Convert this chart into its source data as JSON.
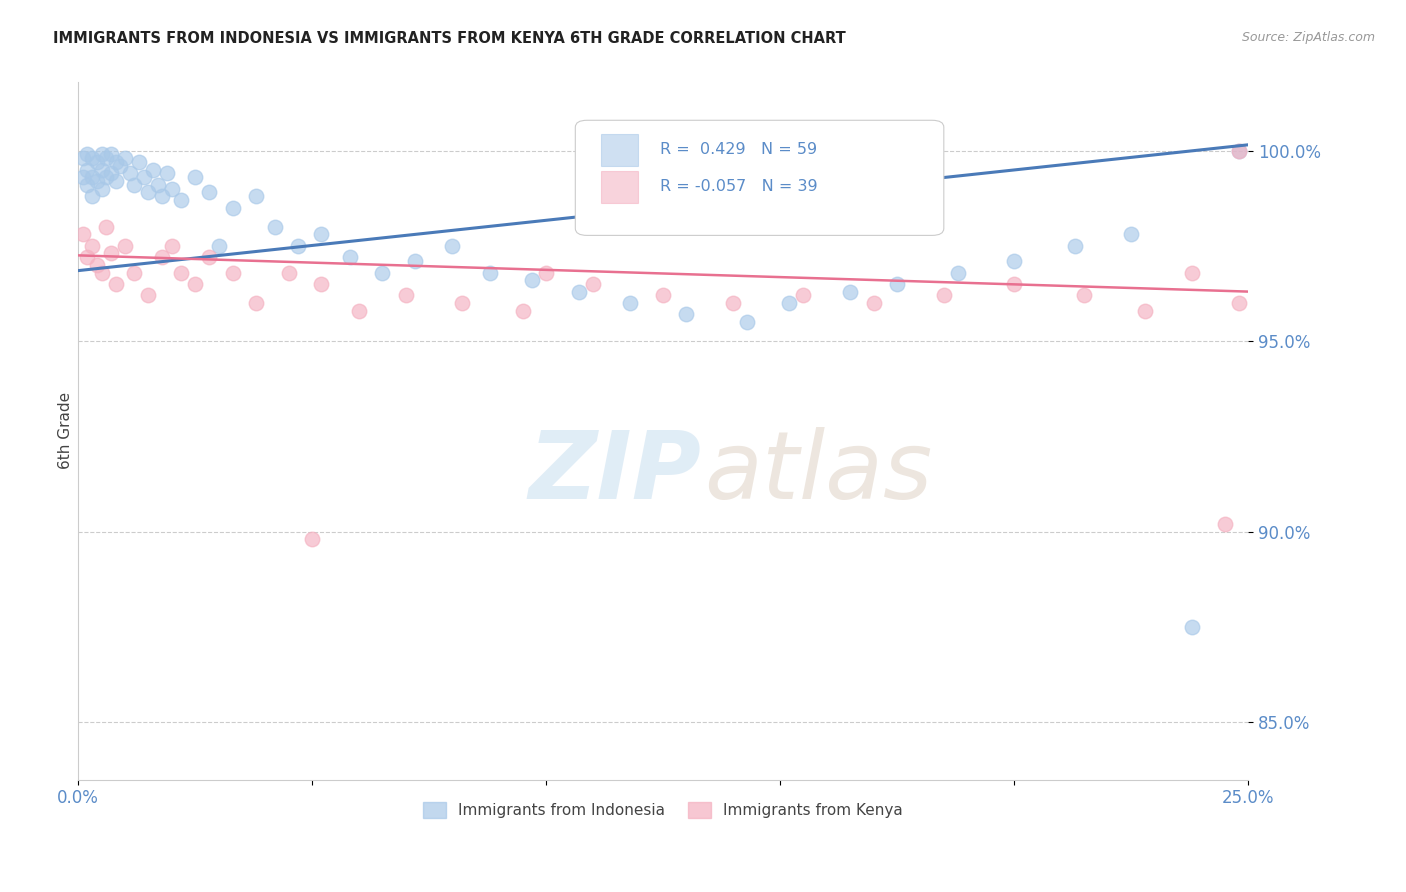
{
  "title": "IMMIGRANTS FROM INDONESIA VS IMMIGRANTS FROM KENYA 6TH GRADE CORRELATION CHART",
  "source_text": "Source: ZipAtlas.com",
  "ylabel": "6th Grade",
  "y_ticks": [
    0.85,
    0.9,
    0.95,
    1.0
  ],
  "y_tick_labels": [
    "85.0%",
    "90.0%",
    "95.0%",
    "100.0%"
  ],
  "x_range": [
    0.0,
    0.25
  ],
  "y_range": [
    0.835,
    1.018
  ],
  "r_indonesia": 0.429,
  "n_indonesia": 59,
  "r_kenya": -0.057,
  "n_kenya": 39,
  "indonesia_color": "#a8c8e8",
  "kenya_color": "#f4b0c0",
  "indonesia_line_color": "#4a7ab8",
  "kenya_line_color": "#e87090",
  "legend_label_indonesia": "Immigrants from Indonesia",
  "legend_label_kenya": "Immigrants from Kenya",
  "watermark_zip": "ZIP",
  "watermark_atlas": "atlas",
  "background_color": "#ffffff",
  "title_color": "#222222",
  "tick_color": "#5b8cc8",
  "indonesia_points": [
    [
      0.001,
      0.998
    ],
    [
      0.001,
      0.993
    ],
    [
      0.002,
      0.999
    ],
    [
      0.002,
      0.995
    ],
    [
      0.002,
      0.991
    ],
    [
      0.003,
      0.998
    ],
    [
      0.003,
      0.993
    ],
    [
      0.003,
      0.988
    ],
    [
      0.004,
      0.997
    ],
    [
      0.004,
      0.992
    ],
    [
      0.005,
      0.999
    ],
    [
      0.005,
      0.995
    ],
    [
      0.005,
      0.99
    ],
    [
      0.006,
      0.998
    ],
    [
      0.006,
      0.993
    ],
    [
      0.007,
      0.999
    ],
    [
      0.007,
      0.994
    ],
    [
      0.008,
      0.997
    ],
    [
      0.008,
      0.992
    ],
    [
      0.009,
      0.996
    ],
    [
      0.01,
      0.998
    ],
    [
      0.011,
      0.994
    ],
    [
      0.012,
      0.991
    ],
    [
      0.013,
      0.997
    ],
    [
      0.014,
      0.993
    ],
    [
      0.015,
      0.989
    ],
    [
      0.016,
      0.995
    ],
    [
      0.017,
      0.991
    ],
    [
      0.018,
      0.988
    ],
    [
      0.019,
      0.994
    ],
    [
      0.02,
      0.99
    ],
    [
      0.022,
      0.987
    ],
    [
      0.025,
      0.993
    ],
    [
      0.028,
      0.989
    ],
    [
      0.03,
      0.975
    ],
    [
      0.033,
      0.985
    ],
    [
      0.038,
      0.988
    ],
    [
      0.042,
      0.98
    ],
    [
      0.047,
      0.975
    ],
    [
      0.052,
      0.978
    ],
    [
      0.058,
      0.972
    ],
    [
      0.065,
      0.968
    ],
    [
      0.072,
      0.971
    ],
    [
      0.08,
      0.975
    ],
    [
      0.088,
      0.968
    ],
    [
      0.097,
      0.966
    ],
    [
      0.107,
      0.963
    ],
    [
      0.118,
      0.96
    ],
    [
      0.13,
      0.957
    ],
    [
      0.143,
      0.955
    ],
    [
      0.152,
      0.96
    ],
    [
      0.165,
      0.963
    ],
    [
      0.175,
      0.965
    ],
    [
      0.188,
      0.968
    ],
    [
      0.2,
      0.971
    ],
    [
      0.213,
      0.975
    ],
    [
      0.225,
      0.978
    ],
    [
      0.238,
      0.875
    ],
    [
      0.248,
      1.0
    ]
  ],
  "kenya_points": [
    [
      0.001,
      0.978
    ],
    [
      0.002,
      0.972
    ],
    [
      0.003,
      0.975
    ],
    [
      0.004,
      0.97
    ],
    [
      0.005,
      0.968
    ],
    [
      0.006,
      0.98
    ],
    [
      0.007,
      0.973
    ],
    [
      0.008,
      0.965
    ],
    [
      0.01,
      0.975
    ],
    [
      0.012,
      0.968
    ],
    [
      0.015,
      0.962
    ],
    [
      0.018,
      0.972
    ],
    [
      0.02,
      0.975
    ],
    [
      0.022,
      0.968
    ],
    [
      0.025,
      0.965
    ],
    [
      0.028,
      0.972
    ],
    [
      0.033,
      0.968
    ],
    [
      0.038,
      0.96
    ],
    [
      0.045,
      0.968
    ],
    [
      0.052,
      0.965
    ],
    [
      0.06,
      0.958
    ],
    [
      0.07,
      0.962
    ],
    [
      0.082,
      0.96
    ],
    [
      0.095,
      0.958
    ],
    [
      0.11,
      0.965
    ],
    [
      0.125,
      0.962
    ],
    [
      0.14,
      0.96
    ],
    [
      0.155,
      0.962
    ],
    [
      0.17,
      0.96
    ],
    [
      0.185,
      0.962
    ],
    [
      0.2,
      0.965
    ],
    [
      0.215,
      0.962
    ],
    [
      0.228,
      0.958
    ],
    [
      0.238,
      0.968
    ],
    [
      0.245,
      0.902
    ],
    [
      0.248,
      0.96
    ],
    [
      0.1,
      0.968
    ],
    [
      0.05,
      0.898
    ],
    [
      0.248,
      1.0
    ]
  ]
}
